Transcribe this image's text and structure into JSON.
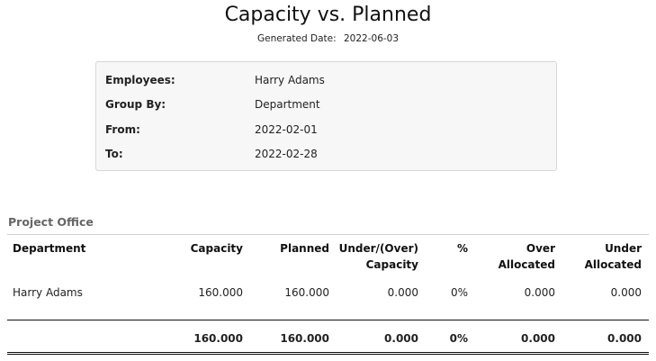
{
  "report": {
    "title": "Capacity vs. Planned",
    "generated_label": "Generated Date:",
    "generated_value": "2022-06-03"
  },
  "params": [
    {
      "label": "Employees:",
      "value": "Harry Adams"
    },
    {
      "label": "Group By:",
      "value": "Department"
    },
    {
      "label": "From:",
      "value": "2022-02-01"
    },
    {
      "label": "To:",
      "value": "2022-02-28"
    }
  ],
  "section": {
    "title": "Project Office"
  },
  "table": {
    "headers": {
      "department": "Department",
      "capacity": "Capacity",
      "planned": "Planned",
      "under_over_1": "Under/(Over)",
      "under_over_2": "Capacity",
      "pct": "%",
      "over_1": "Over",
      "over_2": "Allocated",
      "under_1": "Under",
      "under_2": "Allocated"
    },
    "rows": [
      {
        "department": "Harry Adams",
        "capacity": "160.000",
        "planned": "160.000",
        "under_over": "0.000",
        "pct": "0%",
        "over": "0.000",
        "under": "0.000"
      }
    ],
    "totals": {
      "capacity": "160.000",
      "planned": "160.000",
      "under_over": "0.000",
      "pct": "0%",
      "over": "0.000",
      "under": "0.000"
    }
  }
}
